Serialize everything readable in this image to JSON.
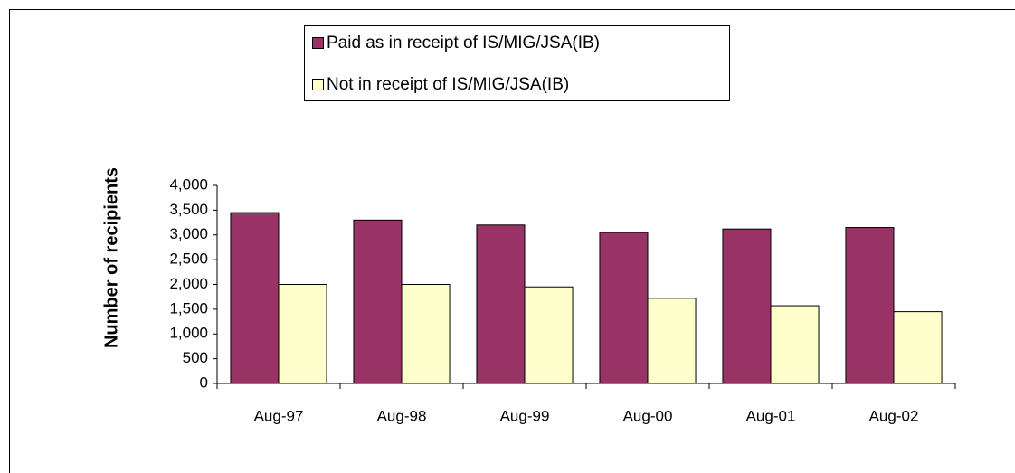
{
  "chart_data": {
    "type": "bar",
    "y_label": "Number of recipients",
    "categories": [
      "Aug-97",
      "Aug-98",
      "Aug-99",
      "Aug-00",
      "Aug-01",
      "Aug-02"
    ],
    "series": [
      {
        "name": "Paid as in receipt of IS/MIG/JSA(IB)",
        "color": "#993366",
        "values": [
          3450,
          3300,
          3200,
          3050,
          3120,
          3150
        ]
      },
      {
        "name": "Not in receipt of IS/MIG/JSA(IB)",
        "color": "#ffffcc",
        "values": [
          2000,
          2000,
          1950,
          1720,
          1570,
          1450
        ]
      }
    ],
    "ylim": [
      0,
      4000
    ],
    "yticks": [
      0,
      500,
      {
        "value": 1000,
        "label": "1,000"
      },
      {
        "value": 1500,
        "label": "1,500"
      },
      {
        "value": 2000,
        "label": "2,000"
      },
      {
        "value": 2500,
        "label": "2,500"
      },
      {
        "value": 3000,
        "label": "3,000"
      },
      {
        "value": 3500,
        "label": "3,500"
      },
      {
        "value": 4000,
        "label": "4,000"
      }
    ],
    "legend": "top"
  }
}
